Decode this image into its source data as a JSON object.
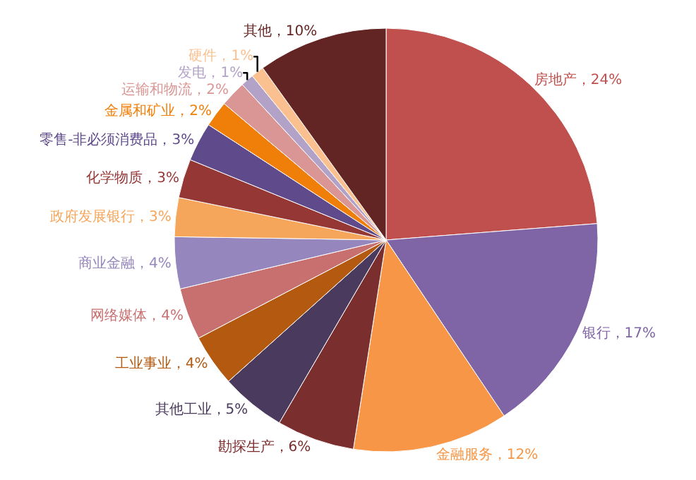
{
  "chart_data": {
    "type": "pie",
    "legend": false,
    "categories": [
      "房地产",
      "银行",
      "金融服务",
      "勘探生产",
      "其他工业",
      "工业事业",
      "网络媒体",
      "商业金融",
      "政府发展银行",
      "化学物质",
      "零售-非必须消费品",
      "金属和矿业",
      "运输和物流",
      "发电",
      "硬件",
      "其他"
    ],
    "values": [
      24,
      17,
      12,
      6,
      5,
      4,
      4,
      4,
      3,
      3,
      3,
      2,
      2,
      1,
      1,
      10
    ],
    "value_labels": [
      "24%",
      "17%",
      "12%",
      "6%",
      "5%",
      "4%",
      "4%",
      "4%",
      "3%",
      "3%",
      "3%",
      "2%",
      "2%",
      "1%",
      "1%",
      "10%"
    ],
    "colors": [
      "#c0504d",
      "#7f64a6",
      "#f79646",
      "#7b2e2e",
      "#4a3a5e",
      "#b35a10",
      "#c87070",
      "#9586bd",
      "#f5a65b",
      "#953735",
      "#5f4a8b",
      "#f07f09",
      "#d99694",
      "#b3a2c7",
      "#fac090",
      "#632523"
    ]
  }
}
